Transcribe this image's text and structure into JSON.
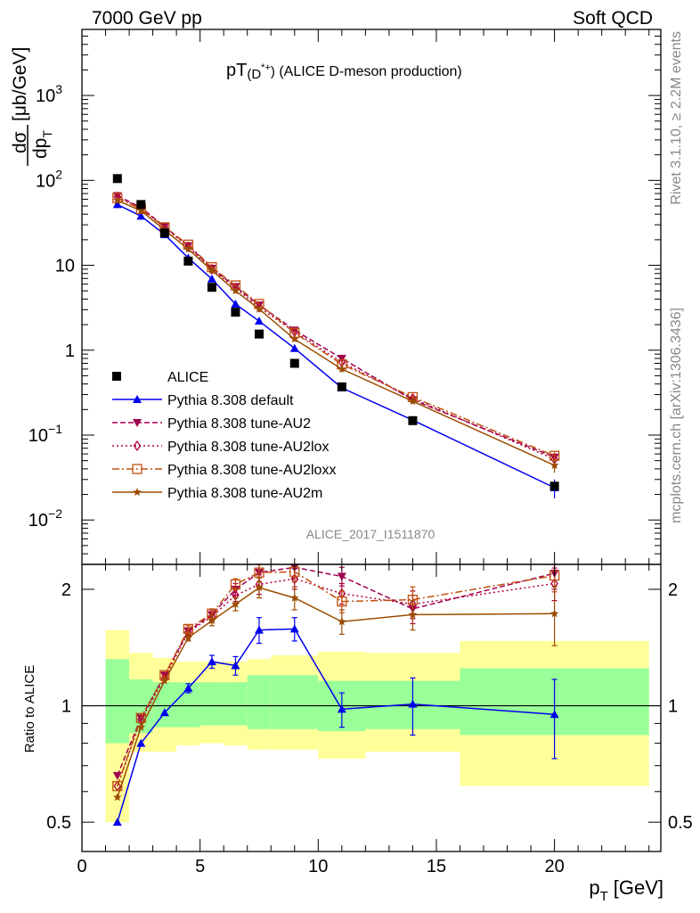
{
  "header": {
    "left": "7000 GeV pp",
    "right": "Soft QCD"
  },
  "side": {
    "rivet": "Rivet 3.1.10, ≥ 2.2M events",
    "mcplots": "mcplots.cern.ch [arXiv:1306.3436]"
  },
  "chart_data": [
    {
      "type": "scatter",
      "title_main": "pT",
      "title_paren": "(D",
      "title_sup": "*+",
      "title_close": ")",
      "title_rest": " (ALICE D-meson production)",
      "analysis_label": "ALICE_2017_I1511870",
      "ylabel_num": "dσ",
      "ylabel_den": "dp",
      "ylabel_den_sub": "T",
      "ylabel_unit": "[μb/GeV]",
      "xlabel": "p",
      "xlabel_sub": "T",
      "xlabel_unit": "[GeV]",
      "xlim": [
        0,
        24.5
      ],
      "ylim": [
        0.003,
        6000
      ],
      "yscale": "log",
      "x_ticks": [
        "0",
        "5",
        "10",
        "15",
        "20"
      ],
      "y_ticks": [
        {
          "value": 0.01,
          "base": "10",
          "exp": "−2"
        },
        {
          "value": 0.1,
          "base": "10",
          "exp": "−1"
        },
        {
          "value": 1,
          "base": "1",
          "exp": ""
        },
        {
          "value": 10,
          "base": "10",
          "exp": ""
        },
        {
          "value": 100,
          "base": "10",
          "exp": "2"
        },
        {
          "value": 1000,
          "base": "10",
          "exp": "3"
        }
      ],
      "legend_position": "lower-left",
      "data": {
        "name": "ALICE",
        "x": [
          1.5,
          2.5,
          3.5,
          4.5,
          5.5,
          6.5,
          7.5,
          9,
          11,
          14,
          20
        ],
        "xerr": [
          0.5,
          0.5,
          0.5,
          0.5,
          0.5,
          0.5,
          0.5,
          1,
          1,
          2,
          4
        ],
        "y": [
          105,
          52,
          24,
          11.2,
          5.5,
          2.8,
          1.55,
          0.7,
          0.37,
          0.148,
          0.025
        ]
      },
      "series": [
        {
          "name": "Pythia 8.308 default",
          "color": "#0000ee",
          "marker": "triangle-up",
          "dash": "",
          "x": [
            1.5,
            2.5,
            3.5,
            4.5,
            5.5,
            6.5,
            7.5,
            9,
            11,
            14,
            20
          ],
          "y": [
            52,
            38,
            23,
            12.2,
            6.9,
            3.5,
            2.2,
            1.05,
            0.36,
            0.15,
            0.024
          ],
          "err": [
            0,
            0,
            0,
            0,
            0,
            0,
            0,
            0.06,
            0.02,
            0.01,
            0.006
          ]
        },
        {
          "name": "Pythia 8.308 tune-AU2",
          "color": "#a0004f",
          "marker": "triangle-down",
          "dash": "6,3",
          "x": [
            1.5,
            2.5,
            3.5,
            4.5,
            5.5,
            6.5,
            7.5,
            9,
            11,
            14,
            20
          ],
          "y": [
            66,
            48,
            28.5,
            17,
            9.2,
            5.6,
            3.4,
            1.72,
            0.8,
            0.26,
            0.055
          ],
          "err": [
            0,
            0,
            0,
            0,
            0,
            0,
            0,
            0.1,
            0.05,
            0.015,
            0.006
          ]
        },
        {
          "name": "Pythia 8.308 tune-AU2lox",
          "color": "#b0003a",
          "marker": "diamond-open",
          "dash": "2,3",
          "x": [
            1.5,
            2.5,
            3.5,
            4.5,
            5.5,
            6.5,
            7.5,
            9,
            11,
            14,
            20
          ],
          "y": [
            64,
            47,
            28,
            16.5,
            9.0,
            5.4,
            3.2,
            1.65,
            0.72,
            0.27,
            0.052
          ],
          "err": [
            0,
            0,
            0,
            0,
            0,
            0,
            0,
            0.1,
            0.05,
            0.015,
            0.006
          ]
        },
        {
          "name": "Pythia 8.308 tune-AU2loxx",
          "color": "#c05010",
          "marker": "square-open",
          "dash": "8,3,2,3",
          "x": [
            1.5,
            2.5,
            3.5,
            4.5,
            5.5,
            6.5,
            7.5,
            9,
            11,
            14,
            20
          ],
          "y": [
            62,
            46,
            28,
            17.5,
            9.5,
            5.8,
            3.5,
            1.6,
            0.68,
            0.28,
            0.057
          ],
          "err": [
            0,
            0,
            0,
            0,
            0,
            0,
            0,
            0.1,
            0.05,
            0.015,
            0.006
          ]
        },
        {
          "name": "Pythia 8.308 tune-AU2m",
          "color": "#9c4c00",
          "marker": "star",
          "dash": "",
          "x": [
            1.5,
            2.5,
            3.5,
            4.5,
            5.5,
            6.5,
            7.5,
            9,
            11,
            14,
            20
          ],
          "y": [
            58,
            44,
            26,
            15.5,
            8.7,
            5.0,
            3.05,
            1.35,
            0.6,
            0.25,
            0.044
          ],
          "err": [
            0,
            0,
            0,
            0,
            0,
            0,
            0,
            0.08,
            0.05,
            0.015,
            0.008
          ]
        }
      ]
    },
    {
      "type": "scatter",
      "ylabel": "Ratio to ALICE",
      "xlim": [
        0,
        24.5
      ],
      "ylim": [
        0.42,
        2.32
      ],
      "yscale": "log",
      "y_ticks": [
        "0.5",
        "1",
        "2"
      ],
      "band_edges": [
        1,
        2,
        3,
        4,
        5,
        6,
        7,
        8,
        10,
        12,
        16,
        24
      ],
      "band_inner": [
        [
          0.8,
          1.32
        ],
        [
          0.85,
          1.17
        ],
        [
          0.88,
          1.15
        ],
        [
          0.88,
          1.15
        ],
        [
          0.89,
          1.15
        ],
        [
          0.89,
          1.15
        ],
        [
          0.87,
          1.2
        ],
        [
          0.87,
          1.2
        ],
        [
          0.86,
          1.16
        ],
        [
          0.87,
          1.16
        ],
        [
          0.84,
          1.25
        ]
      ],
      "band_outer": [
        [
          0.5,
          1.57
        ],
        [
          0.76,
          1.37
        ],
        [
          0.76,
          1.33
        ],
        [
          0.79,
          1.3
        ],
        [
          0.8,
          1.3
        ],
        [
          0.79,
          1.3
        ],
        [
          0.77,
          1.32
        ],
        [
          0.77,
          1.35
        ],
        [
          0.73,
          1.38
        ],
        [
          0.76,
          1.37
        ],
        [
          0.62,
          1.47
        ]
      ],
      "series": [
        {
          "name": "Pythia 8.308 default",
          "y": [
            0.5,
            0.8,
            0.96,
            1.11,
            1.3,
            1.27,
            1.57,
            1.58,
            0.98,
            1.01,
            0.95
          ],
          "err": [
            0,
            0,
            0,
            0.03,
            0.05,
            0.07,
            0.12,
            0.11,
            0.1,
            0.17,
            0.22
          ]
        },
        {
          "name": "Pythia 8.308 tune-AU2",
          "y": [
            0.66,
            0.93,
            1.2,
            1.56,
            1.72,
            2.0,
            2.21,
            2.28,
            2.16,
            1.78,
            2.2
          ],
          "err": [
            0,
            0,
            0,
            0.03,
            0.05,
            0.07,
            0.12,
            0.14,
            0.12,
            0.15,
            0.2
          ]
        },
        {
          "name": "Pythia 8.308 tune-AU2lox",
          "y": [
            0.62,
            0.92,
            1.18,
            1.55,
            1.7,
            1.93,
            2.06,
            2.13,
            1.95,
            1.83,
            2.07
          ],
          "err": [
            0,
            0,
            0,
            0.03,
            0.05,
            0.07,
            0.12,
            0.13,
            0.12,
            0.15,
            0.2
          ]
        },
        {
          "name": "Pythia 8.308 tune-AU2loxx",
          "y": [
            0.62,
            0.93,
            1.2,
            1.58,
            1.73,
            2.06,
            2.21,
            2.22,
            1.86,
            1.88,
            2.17
          ],
          "err": [
            0,
            0,
            0,
            0.03,
            0.05,
            0.07,
            0.12,
            0.13,
            0.12,
            0.15,
            0.2
          ]
        },
        {
          "name": "Pythia 8.308 tune-AU2m",
          "y": [
            0.58,
            0.88,
            1.16,
            1.5,
            1.66,
            1.83,
            2.02,
            1.9,
            1.65,
            1.72,
            1.73
          ],
          "err": [
            0,
            0,
            0,
            0.03,
            0.05,
            0.07,
            0.12,
            0.13,
            0.12,
            0.15,
            0.3
          ]
        }
      ]
    }
  ]
}
